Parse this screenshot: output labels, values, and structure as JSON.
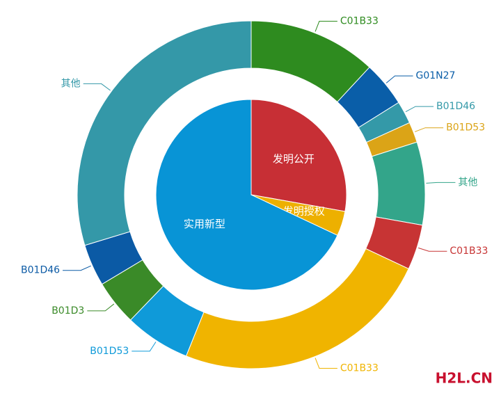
{
  "chart_data": {
    "type": "pie",
    "series": [
      {
        "categories": [
          "发明公开",
          "发明授权",
          "实用新型"
        ],
        "values": [
          27.8,
          4.2,
          68
        ],
        "colors": [
          "#c72f35",
          "#edb000",
          "#0894d6"
        ]
      },
      {
        "categories": [
          "C01B33",
          "G01N27",
          "B01D46",
          "B01D53",
          "其他",
          "C01B33",
          "C01B33",
          "B01D53",
          "B01D3",
          "B01D46",
          "其他"
        ],
        "values": [
          11.9,
          4.2,
          2.1,
          1.9,
          7.7,
          4.2,
          24.1,
          6.1,
          4.2,
          3.9,
          29.7
        ],
        "colors": [
          "#2e8b1f",
          "#0a5ea8",
          "#3499a8",
          "#dba417",
          "#33a58a",
          "#c73434",
          "#f0b400",
          "#0f9ad9",
          "#3a8a28",
          "#0b5aa5",
          "#3498a8"
        ]
      }
    ],
    "watermark": "H2L.CN"
  }
}
